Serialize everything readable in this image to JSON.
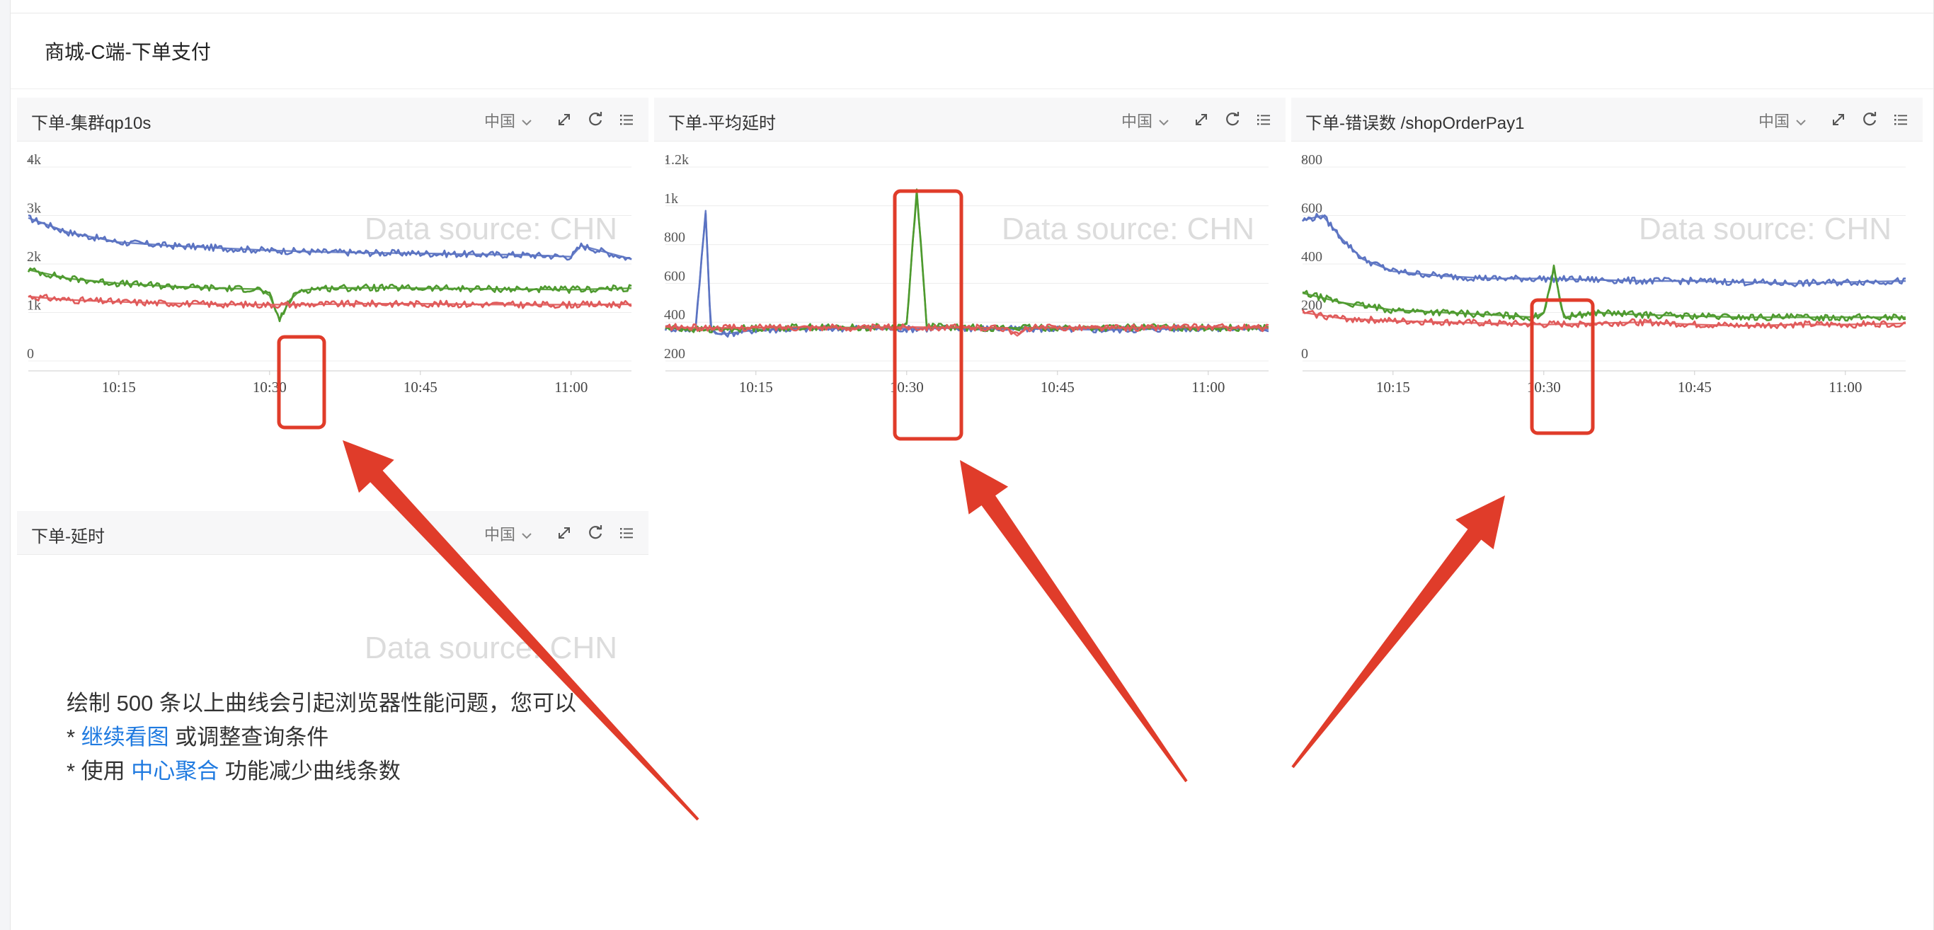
{
  "dashboard": {
    "title": "商城-C端-下单支付"
  },
  "panels": [
    {
      "title": "下单-集群qp10s",
      "region": "中国",
      "watermark": "Data source: CHN",
      "chart_data": {
        "type": "line",
        "x_ticks": [
          "10:15",
          "10:30",
          "10:45",
          "11:00"
        ],
        "y_ticks": [
          "0",
          "1k",
          "2k",
          "3k",
          "4k"
        ],
        "ylim": [
          0,
          4000
        ],
        "x_range": [
          "10:06",
          "11:06"
        ],
        "series": [
          {
            "color": "#5b73c2",
            "x": [
              "10:06",
              "10:10",
              "10:15",
              "10:20",
              "10:25",
              "10:30",
              "10:35",
              "10:40",
              "10:45",
              "10:50",
              "10:55",
              "11:00",
              "11:01",
              "11:06"
            ],
            "values": [
              2950,
              2650,
              2450,
              2380,
              2330,
              2280,
              2250,
              2230,
              2220,
              2200,
              2190,
              2150,
              2380,
              2100
            ]
          },
          {
            "color": "#4e9a2f",
            "x": [
              "10:06",
              "10:10",
              "10:15",
              "10:20",
              "10:25",
              "10:29",
              "10:30",
              "10:31",
              "10:32",
              "10:33",
              "10:35",
              "10:40",
              "10:45",
              "10:50",
              "10:55",
              "11:00",
              "11:06"
            ],
            "values": [
              1880,
              1700,
              1600,
              1540,
              1500,
              1480,
              1350,
              850,
              1250,
              1450,
              1500,
              1510,
              1500,
              1490,
              1480,
              1470,
              1500
            ]
          },
          {
            "color": "#e05a5a",
            "x": [
              "10:06",
              "10:10",
              "10:15",
              "10:20",
              "10:25",
              "10:30",
              "10:35",
              "10:40",
              "10:45",
              "10:50",
              "10:55",
              "11:00",
              "11:06"
            ],
            "values": [
              1330,
              1260,
              1220,
              1190,
              1170,
              1160,
              1170,
              1180,
              1180,
              1170,
              1160,
              1160,
              1170
            ]
          }
        ]
      }
    },
    {
      "title": "下单-平均延时",
      "region": "中国",
      "watermark": "Data source: CHN",
      "chart_data": {
        "type": "line",
        "x_ticks": [
          "10:15",
          "10:30",
          "10:45",
          "11:00"
        ],
        "y_ticks": [
          "200",
          "400",
          "600",
          "800",
          "1k",
          "1.2k"
        ],
        "ylim": [
          200,
          1200
        ],
        "x_range": [
          "10:06",
          "11:06"
        ],
        "series": [
          {
            "color": "#5b73c2",
            "x": [
              "10:06",
              "10:09",
              "10:10",
              "10:10.5",
              "10:11",
              "10:12",
              "10:15",
              "10:20",
              "10:25",
              "10:30",
              "10:35",
              "10:40",
              "10:45",
              "10:50",
              "10:55",
              "11:00",
              "11:06"
            ],
            "values": [
              370,
              360,
              975,
              370,
              340,
              340,
              360,
              365,
              370,
              365,
              370,
              365,
              365,
              360,
              365,
              370,
              365
            ]
          },
          {
            "color": "#4e9a2f",
            "x": [
              "10:06",
              "10:10",
              "10:15",
              "10:20",
              "10:25",
              "10:29",
              "10:30",
              "10:31",
              "10:32",
              "10:35",
              "10:40",
              "10:45",
              "10:50",
              "10:55",
              "11:00",
              "11:06"
            ],
            "values": [
              370,
              360,
              370,
              375,
              372,
              375,
              390,
              1085,
              380,
              372,
              370,
              372,
              370,
              375,
              370,
              372
            ]
          },
          {
            "color": "#e05a5a",
            "x": [
              "10:06",
              "10:10",
              "10:15",
              "10:20",
              "10:25",
              "10:30",
              "10:35",
              "10:40",
              "10:41",
              "10:42",
              "10:45",
              "10:50",
              "10:55",
              "11:00",
              "11:06"
            ],
            "values": [
              375,
              370,
              372,
              375,
              370,
              375,
              372,
              370,
              330,
              370,
              372,
              370,
              372,
              375,
              370
            ]
          }
        ]
      }
    },
    {
      "title": "下单-错误数 /shopOrderPay1",
      "region": "中国",
      "watermark": "Data source: CHN",
      "chart_data": {
        "type": "line",
        "x_ticks": [
          "10:15",
          "10:30",
          "10:45",
          "11:00"
        ],
        "y_ticks": [
          "0",
          "200",
          "400",
          "600",
          "800"
        ],
        "ylim": [
          0,
          800
        ],
        "x_range": [
          "10:06",
          "11:06"
        ],
        "series": [
          {
            "color": "#5b73c2",
            "x": [
              "10:06",
              "10:08",
              "10:10",
              "10:12",
              "10:15",
              "10:20",
              "10:25",
              "10:30",
              "10:35",
              "10:40",
              "10:45",
              "10:50",
              "10:55",
              "11:00",
              "11:06"
            ],
            "values": [
              580,
              600,
              500,
              420,
              370,
              350,
              340,
              340,
              335,
              330,
              330,
              325,
              320,
              325,
              330
            ]
          },
          {
            "color": "#4e9a2f",
            "x": [
              "10:06",
              "10:10",
              "10:15",
              "10:20",
              "10:25",
              "10:29",
              "10:30",
              "10:31",
              "10:32",
              "10:35",
              "10:40",
              "10:45",
              "10:50",
              "10:55",
              "11:00",
              "11:06"
            ],
            "values": [
              280,
              240,
              210,
              200,
              190,
              180,
              200,
              380,
              180,
              200,
              190,
              185,
              180,
              180,
              180,
              180
            ]
          },
          {
            "color": "#e05a5a",
            "x": [
              "10:06",
              "10:10",
              "10:15",
              "10:20",
              "10:25",
              "10:30",
              "10:35",
              "10:40",
              "10:45",
              "10:50",
              "10:55",
              "11:00",
              "11:06"
            ],
            "values": [
              200,
              175,
              165,
              160,
              155,
              150,
              155,
              160,
              150,
              145,
              150,
              150,
              155
            ]
          }
        ]
      }
    },
    {
      "title": "下单-延时",
      "region": "中国",
      "watermark": "Data source: CHN"
    }
  ],
  "warning": {
    "line1": "绘制 500 条以上曲线会引起浏览器性能问题，您可以",
    "line2_prefix": "* ",
    "line2_link": "继续看图",
    "line2_suffix": " 或调整查询条件",
    "line3_prefix": "* 使用 ",
    "line3_link": "中心聚合",
    "line3_suffix": " 功能减少曲线条数"
  },
  "annotations": {
    "highlight_color": "#e03c2a"
  }
}
